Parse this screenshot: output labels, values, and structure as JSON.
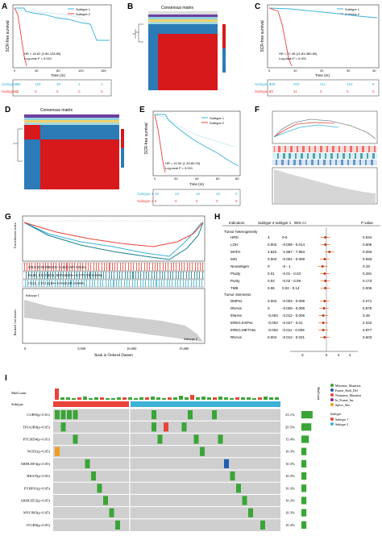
{
  "panel_letters": [
    "A",
    "B",
    "C",
    "D",
    "E",
    "F",
    "G",
    "H",
    "I"
  ],
  "colors": {
    "subtype1": "#3cb3d6",
    "subtype2": "#e8443a",
    "heat_red": "#d7191c",
    "heat_blue": "#2c7bb6",
    "mut_green": "#3aa537",
    "forest_orange": "#f08030",
    "missense": "#3aa537",
    "frameshift_del": "#1f5fae",
    "nonsense": "#e8443a",
    "inframe_ins": "#8d2b8a",
    "splice": "#f39c1e"
  },
  "panelA": {
    "legend": [
      "Subtype 1",
      "Subtype 2"
    ],
    "ylabel": "SCR-free survival",
    "xlabel": "Time (m)",
    "xticks": [
      "0",
      "40",
      "80",
      "120",
      "160"
    ],
    "hr": "HR = 16.62 (2.86-128.89)",
    "logrank": "Log-rank P < 0.001",
    "risk_rows": [
      {
        "label": "Subtype 1",
        "values": [
          "286",
          "129",
          "26",
          "1",
          "1"
        ]
      },
      {
        "label": "Subtype 2",
        "values": [
          "43",
          "0",
          "0",
          "0",
          "0"
        ]
      }
    ]
  },
  "panelB": {
    "title": "Consensus matrix"
  },
  "panelC": {
    "legend": [
      "Subtype 1",
      "Subtype 2"
    ],
    "ylabel": "SCR-free survival",
    "xlabel": "Time (m)",
    "xticks": [
      "0",
      "10",
      "20",
      "30",
      "40"
    ],
    "hr": "HR = 27.48 (11.83-380.80)",
    "logrank": "Log-rank P < 0.001",
    "risk_rows": [
      {
        "label": "Subtype 1",
        "values": [
          "208",
          "203",
          "211",
          "152",
          "6"
        ]
      },
      {
        "label": "Subtype 2",
        "values": [
          "22",
          "11",
          "0",
          "0",
          "0"
        ]
      }
    ]
  },
  "panelD": {
    "title": "Consensus matrix"
  },
  "panelE": {
    "legend": [
      "Subtype 1",
      "Subtype 2"
    ],
    "ylabel": "SCR-free survival",
    "xlabel": "Time (m)",
    "xticks": [
      "0",
      "20",
      "40",
      "60",
      "80"
    ],
    "hr": "HR = 10.54 (1.39-80.03)",
    "logrank": "Log-rank P = 0.001",
    "risk_rows": [
      {
        "label": "Subtype 1",
        "values": [
          "29",
          "23",
          "16",
          "10",
          "0"
        ]
      },
      {
        "label": "Subtype 2",
        "values": [
          "6",
          "0",
          "0",
          "0",
          "0"
        ]
      }
    ]
  },
  "panelG": {
    "ylabel_top": "Enrichment score",
    "ylabel_bottom": "Ranked list metric",
    "xlabel": "Rank in Ordered Dataset",
    "xticks": [
      "0",
      "5,000",
      "10,000",
      "15,000"
    ],
    "gene_sets": [
      "SPLICEOSOME(ES=-0.4641,NP<0.0346)",
      "BASE_EXCISION_REPAIR(ES=-0.5379,NP<0.0096)",
      "CELL_CYCLE(ES=-0.5948,NP<0.0009)"
    ],
    "subtype_top": "Subtype 1",
    "subtype_bottom": "Subtype 2"
  },
  "panelH": {
    "headers": [
      "Indicators",
      "Subtype 2-subtype 1",
      "95% CI",
      "P value"
    ],
    "section1": "Tumor heterogeneity",
    "section2": "Tumor stemness",
    "rows": [
      {
        "name": "HRD",
        "est": "3",
        "ci": "0-5",
        "p": "0.034",
        "x": 0.52
      },
      {
        "name": "LOH",
        "est": "0.003",
        "ci": "-0.009 - 0.014",
        "p": "0.606",
        "x": 0.52
      },
      {
        "name": "MATH",
        "est": "2.822",
        "ci": "-1.867 - 7.863",
        "p": "0.283",
        "x": 0.58
      },
      {
        "name": "MSI",
        "est": "0.004",
        "ci": "-0.001 - 0.008",
        "p": "0.093",
        "x": 0.51
      },
      {
        "name": "Neoantigen",
        "est": "0",
        "ci": "-5 - 1",
        "p": "0.18",
        "x": 0.48
      },
      {
        "name": "Ploidy",
        "est": "0.01",
        "ci": "-0.01 - 0.03",
        "p": "0.291",
        "x": 0.51
      },
      {
        "name": "Purity",
        "est": "0.04",
        "ci": "-0.02 - 0.09",
        "p": "0.173",
        "x": 0.52
      },
      {
        "name": "TMB",
        "est": "0.06",
        "ci": "0.02 - 0.14",
        "p": "0.006",
        "x": 0.52
      },
      {
        "name": "DMPss",
        "est": "0.004",
        "ci": "-0.003 - 0.009",
        "p": "0.271",
        "x": 0.51
      },
      {
        "name": "DNAss",
        "est": "0",
        "ci": "-0.008 - 0.008",
        "p": "0.875",
        "x": 0.5
      },
      {
        "name": "ENHss",
        "est": "-0.003",
        "ci": "-0.012 - 0.006",
        "p": "0.49",
        "x": 0.49
      },
      {
        "name": "EREG.EXPss",
        "est": "-0.003",
        "ci": "-0.027 - 0.01",
        "p": "0.342",
        "x": 0.49
      },
      {
        "name": "EREG.METHss",
        "est": "-0.003",
        "ci": "-0.011 - 0.009",
        "p": "0.877",
        "x": 0.49
      },
      {
        "name": "RNAss",
        "est": "0.004",
        "ci": "-0.012 - 0.021",
        "p": "0.603",
        "x": 0.51
      }
    ],
    "axis_ticks": [
      "-2",
      "0",
      "2",
      "4"
    ]
  },
  "panelI": {
    "top_label": "MutCount",
    "subtype_label": "Subtype",
    "right_axis_label": "MutCount",
    "genes": [
      {
        "name": "CUBN(p<0.01)",
        "pct": "23.1%"
      },
      {
        "name": "DNAJB9(p<0.05)",
        "pct": "20.5%"
      },
      {
        "name": "PTCHD4(p<0.01)",
        "pct": "15.4%"
      },
      {
        "name": "NOD1(p<0.05)",
        "pct": "10.3%"
      },
      {
        "name": "ARHGEF4(p<0.05)",
        "pct": "10.3%"
      },
      {
        "name": "BRAN(p<0.05)",
        "pct": "10.3%"
      },
      {
        "name": "FYHIN1(p<0.05)",
        "pct": "10.3%"
      },
      {
        "name": "ARHGEF2(p<0.05)",
        "pct": "10.3%"
      },
      {
        "name": "MYOM3(p<0.05)",
        "pct": "10.3%"
      },
      {
        "name": "ITGB6(p<0.05)",
        "pct": "10.3%"
      }
    ],
    "legend_mut": [
      "Missense_Mutation",
      "Frame_Shift_Del",
      "Nonsense_Mutation",
      "In_Frame_Ins",
      "Splice_Site"
    ],
    "legend_subtype_title": "Subtype",
    "legend_subtype": [
      "Subtype 1",
      "Subtype 2"
    ]
  }
}
